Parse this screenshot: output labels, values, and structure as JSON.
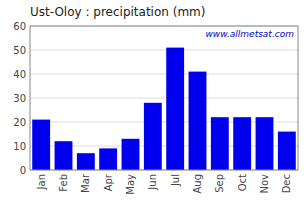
{
  "chart_data": {
    "type": "bar",
    "title": "Ust-Oloy : precipitation (mm)",
    "categories": [
      "Jan",
      "Feb",
      "Mar",
      "Apr",
      "May",
      "Jun",
      "Jul",
      "Aug",
      "Sep",
      "Oct",
      "Nov",
      "Dec"
    ],
    "values": [
      21,
      12,
      7,
      9,
      13,
      28,
      51,
      41,
      22,
      22,
      22,
      16
    ],
    "color": "#0000ee",
    "ylim": [
      0,
      60
    ],
    "yticks": [
      0,
      10,
      20,
      30,
      40,
      50,
      60
    ],
    "grid": true,
    "annotations": [
      "www.allmetsat.com"
    ]
  }
}
